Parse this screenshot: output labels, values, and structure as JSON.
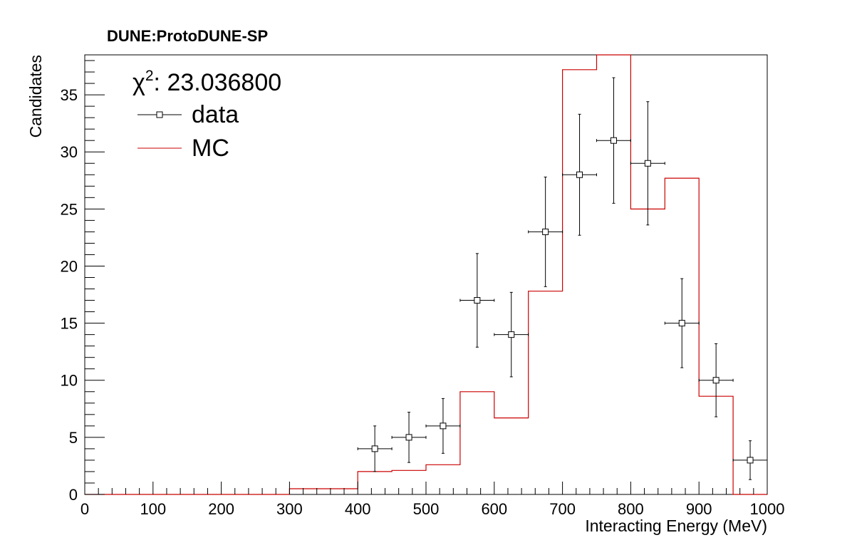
{
  "chart_data": {
    "type": "line",
    "title": "DUNE:ProtoDUNE-SP",
    "xlabel": "Interacting Energy (MeV)",
    "ylabel": "Candidates",
    "xlim": [
      0,
      1000
    ],
    "ylim": [
      0,
      38.5
    ],
    "xticks": [
      0,
      100,
      200,
      300,
      400,
      500,
      600,
      700,
      800,
      900,
      1000
    ],
    "yticks": [
      0,
      5,
      10,
      15,
      20,
      25,
      30,
      35
    ],
    "legend": {
      "position": "top-left",
      "stat_prefix": "χ",
      "stat_sup": "2",
      "stat_value": ": 23.036800",
      "entries": [
        {
          "label": "data",
          "marker": "open-square-with-errorbars",
          "color": "#000000"
        },
        {
          "label": "MC",
          "marker": "line",
          "color": "#cc0000"
        }
      ]
    },
    "series": [
      {
        "name": "data",
        "kind": "points-with-errors",
        "color": "#000000",
        "bin_half_width": 25,
        "x": [
          425,
          475,
          525,
          575,
          625,
          675,
          725,
          775,
          825,
          875,
          925,
          975
        ],
        "values": [
          4,
          5,
          6,
          17,
          14,
          23,
          28,
          31,
          29,
          15,
          10,
          3
        ],
        "err_low": [
          2.0,
          2.2,
          2.4,
          4.1,
          3.7,
          4.8,
          5.3,
          5.5,
          5.4,
          3.9,
          3.2,
          1.7
        ],
        "err_high": [
          2.0,
          2.2,
          2.4,
          4.1,
          3.7,
          4.8,
          5.3,
          5.5,
          5.4,
          3.9,
          3.2,
          1.7
        ]
      },
      {
        "name": "MC",
        "kind": "step-histogram",
        "color": "#cc0000",
        "bin_edges": [
          0,
          50,
          100,
          150,
          200,
          250,
          300,
          350,
          400,
          450,
          500,
          550,
          600,
          650,
          700,
          750,
          800,
          850,
          900,
          950,
          1000
        ],
        "values": [
          0,
          0,
          0,
          0,
          0,
          0,
          0.5,
          0.5,
          2.0,
          2.1,
          2.6,
          9.0,
          6.7,
          17.8,
          37.2,
          38.5,
          25.0,
          27.7,
          8.6,
          0
        ]
      }
    ]
  }
}
